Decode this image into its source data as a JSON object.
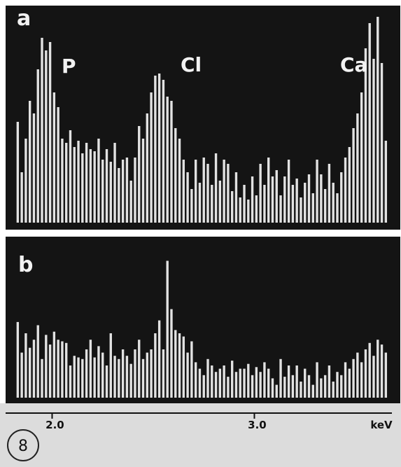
{
  "chart_data": {
    "type": "histogram",
    "bins": [
      1.82,
      1.84,
      1.86,
      1.88,
      1.9,
      1.92,
      1.94,
      1.96,
      1.98,
      2.0,
      2.02,
      2.04,
      2.06,
      2.08,
      2.1,
      2.12,
      2.14,
      2.16,
      2.18,
      2.2,
      2.22,
      2.24,
      2.26,
      2.28,
      2.3,
      2.32,
      2.34,
      2.36,
      2.38,
      2.4,
      2.42,
      2.44,
      2.46,
      2.48,
      2.5,
      2.52,
      2.54,
      2.56,
      2.58,
      2.6,
      2.62,
      2.64,
      2.66,
      2.68,
      2.7,
      2.72,
      2.74,
      2.76,
      2.78,
      2.8,
      2.82,
      2.84,
      2.86,
      2.88,
      2.9,
      2.92,
      2.94,
      2.96,
      2.98,
      3.0,
      3.02,
      3.04,
      3.06,
      3.08,
      3.1,
      3.12,
      3.14,
      3.16,
      3.18,
      3.2,
      3.22,
      3.24,
      3.26,
      3.28,
      3.3,
      3.32,
      3.34,
      3.36,
      3.38,
      3.4,
      3.42,
      3.44,
      3.46,
      3.48,
      3.5,
      3.52,
      3.54,
      3.56,
      3.58,
      3.6,
      3.62,
      3.64,
      3.66
    ],
    "series": [
      {
        "name": "a",
        "color": "#e2e2e2",
        "values": [
          48,
          24,
          40,
          58,
          52,
          73,
          88,
          82,
          86,
          62,
          55,
          40,
          38,
          44,
          36,
          39,
          33,
          38,
          35,
          34,
          40,
          30,
          35,
          29,
          38,
          26,
          30,
          31,
          20,
          31,
          46,
          40,
          52,
          62,
          70,
          71,
          68,
          60,
          58,
          45,
          40,
          30,
          24,
          16,
          30,
          19,
          31,
          28,
          18,
          33,
          20,
          30,
          28,
          15,
          24,
          12,
          18,
          11,
          22,
          13,
          28,
          18,
          31,
          22,
          25,
          13,
          22,
          30,
          18,
          21,
          12,
          19,
          23,
          14,
          30,
          23,
          16,
          28,
          19,
          14,
          24,
          31,
          36,
          45,
          52,
          62,
          83,
          95,
          78,
          98,
          76,
          39
        ]
      },
      {
        "name": "b",
        "color": "#e2e2e2",
        "values": [
          47,
          28,
          40,
          31,
          36,
          45,
          24,
          39,
          33,
          41,
          36,
          35,
          34,
          20,
          26,
          25,
          24,
          30,
          36,
          25,
          32,
          28,
          20,
          40,
          26,
          24,
          30,
          26,
          21,
          30,
          36,
          24,
          28,
          30,
          40,
          48,
          30,
          85,
          55,
          42,
          40,
          38,
          28,
          35,
          22,
          18,
          14,
          24,
          20,
          16,
          18,
          20,
          13,
          23,
          16,
          18,
          18,
          21,
          14,
          19,
          16,
          22,
          18,
          12,
          8,
          24,
          13,
          20,
          14,
          20,
          10,
          18,
          14,
          8,
          22,
          12,
          14,
          20,
          10,
          16,
          14,
          22,
          18,
          24,
          28,
          22,
          30,
          34,
          26,
          36,
          33,
          28
        ]
      }
    ],
    "xlim": [
      1.77,
      3.68
    ],
    "xticks": [
      {
        "value": 2.0,
        "label": "2.0"
      },
      {
        "value": 3.0,
        "label": "3.0"
      }
    ],
    "xlabel": "keV",
    "ylim": [
      0,
      100
    ],
    "annotations": [
      "P",
      "Cl",
      "Ca"
    ],
    "figure_number": "8"
  }
}
